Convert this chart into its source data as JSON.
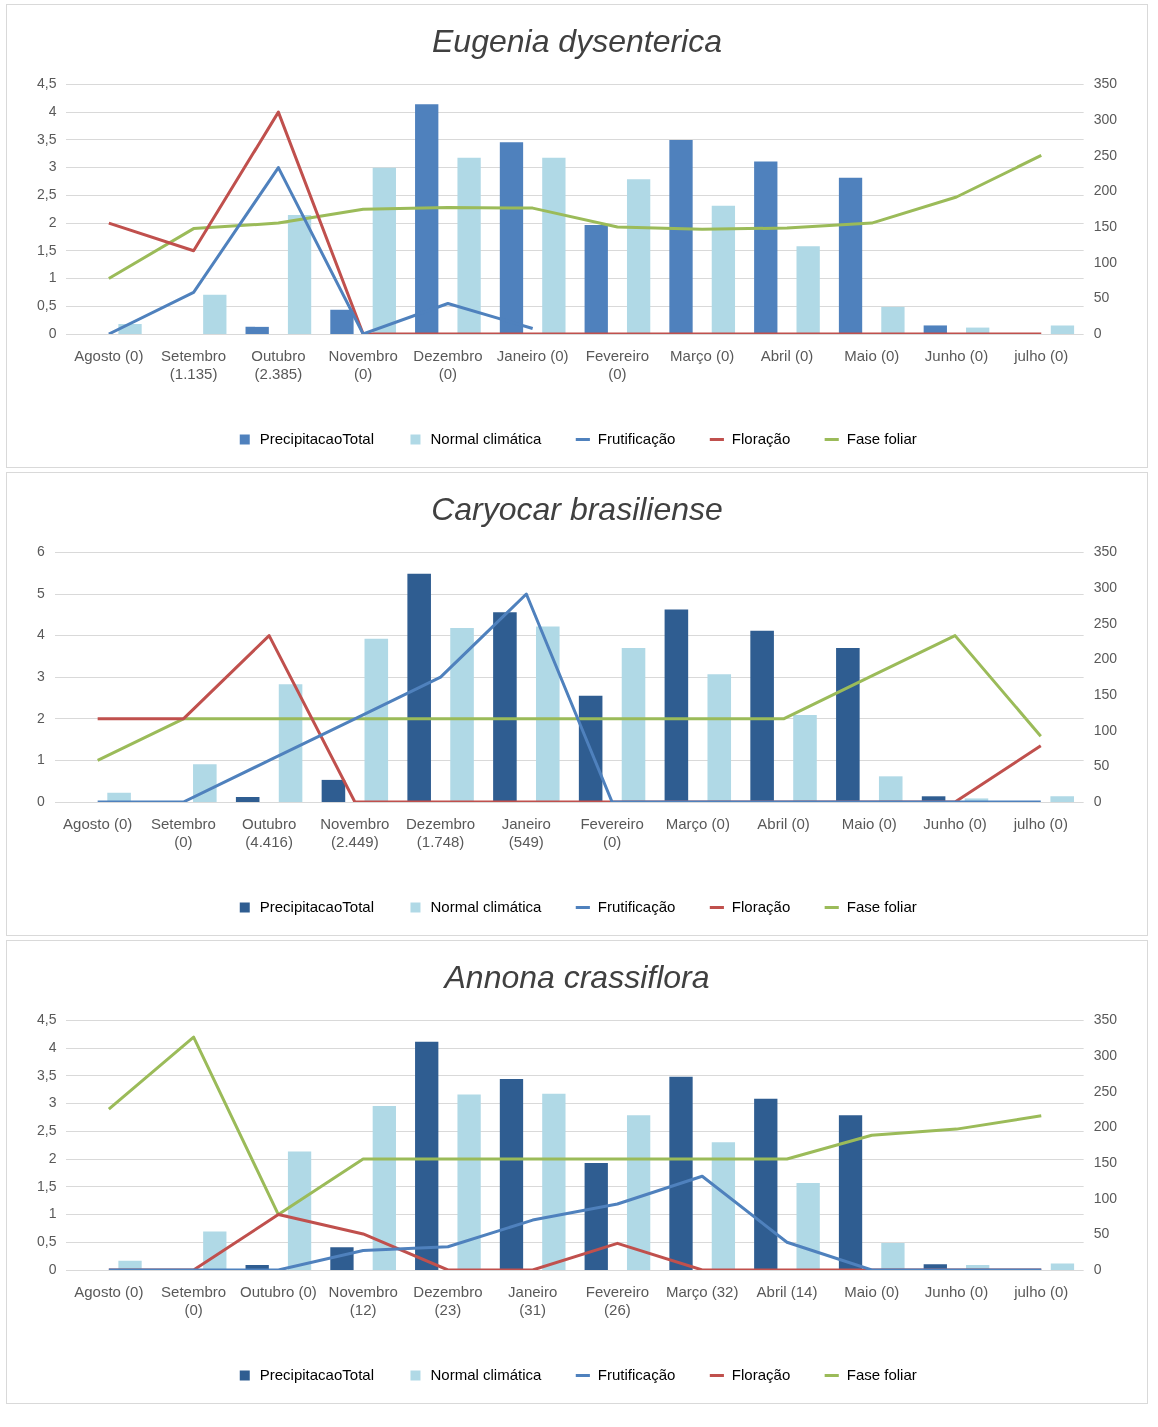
{
  "chart_data": [
    {
      "type": "bar",
      "title": "Eugenia dysenterica",
      "categories": [
        "Agosto (0)",
        "Setembro (1.135)",
        "Outubro (2.385)",
        "Novembro (0)",
        "Dezembro (0)",
        "Janeiro (0)",
        "Fevereiro (0)",
        "Março (0)",
        "Abril (0)",
        "Maio (0)",
        "Junho (0)",
        "julho (0)"
      ],
      "series": [
        {
          "name": "PrecipitacaoTotal",
          "type": "bar",
          "axis": "y2",
          "color": "#4f81bd",
          "values": [
            0,
            0,
            10,
            34,
            322,
            269,
            153,
            272,
            242,
            219,
            12,
            0
          ]
        },
        {
          "name": "Normal climática",
          "type": "bar",
          "axis": "y2",
          "color": "#b0d9e6",
          "values": [
            14,
            55,
            167,
            233,
            247,
            247,
            217,
            180,
            123,
            38,
            9,
            12
          ]
        },
        {
          "name": "Frutificação",
          "type": "line",
          "color": "#4f81bd",
          "values": [
            0,
            0.75,
            3,
            0,
            0.55,
            0.1,
            null,
            null,
            null,
            null,
            null,
            null
          ]
        },
        {
          "name": "Floração",
          "type": "line",
          "color": "#c0504d",
          "values": [
            2,
            1.5,
            4,
            0,
            0,
            0,
            0,
            0,
            0,
            0,
            0,
            0
          ]
        },
        {
          "name": "Fase foliar",
          "type": "line",
          "color": "#9bbb59",
          "values": [
            1,
            1.9,
            2,
            2.25,
            2.28,
            2.27,
            1.93,
            1.89,
            1.91,
            2,
            2.47,
            3.22
          ]
        }
      ],
      "ylim": [
        0,
        4.5
      ],
      "yticks": [
        0,
        {
          "value": 0.5,
          "label": "0,5"
        },
        1,
        {
          "value": 1.5,
          "label": "1,5"
        },
        2,
        {
          "value": 2.5,
          "label": "2,5"
        },
        3,
        {
          "value": 3.5,
          "label": "3,5"
        },
        4,
        {
          "value": 4.5,
          "label": "4,5"
        }
      ],
      "y2lim": [
        0,
        350
      ],
      "y2ticks": [
        0,
        50,
        100,
        150,
        200,
        250,
        300,
        350
      ],
      "grid": "y",
      "legend": "bottom",
      "marker": "none"
    },
    {
      "type": "bar",
      "title": "Caryocar brasiliense",
      "categories": [
        "Agosto (0)",
        "Setembro (0)",
        "Outubro (4.416)",
        "Novembro (2.449)",
        "Dezembro (1.748)",
        "Janeiro (549)",
        "Fevereiro (0)",
        "Março (0)",
        "Abril (0)",
        "Maio (0)",
        "Junho (0)",
        "julho (0)"
      ],
      "series": [
        {
          "name": "PrecipitacaoTotal",
          "type": "bar",
          "axis": "y2",
          "color": "#2f5d91",
          "values": [
            0,
            0,
            7,
            31,
            320,
            266,
            149,
            270,
            240,
            216,
            8,
            0
          ]
        },
        {
          "name": "Normal climática",
          "type": "bar",
          "axis": "y2",
          "color": "#b0d9e6",
          "values": [
            13,
            53,
            165,
            229,
            244,
            246,
            216,
            179,
            122,
            36,
            5,
            8
          ]
        },
        {
          "name": "Frutificação",
          "type": "line",
          "color": "#4f81bd",
          "values": [
            0,
            0,
            1,
            2,
            3,
            5,
            0,
            0,
            0,
            0,
            0,
            0
          ]
        },
        {
          "name": "Floração",
          "type": "line",
          "color": "#c0504d",
          "values": [
            2,
            2,
            4,
            0,
            0,
            0,
            0,
            0,
            0,
            0,
            0,
            1.35
          ]
        },
        {
          "name": "Fase foliar",
          "type": "line",
          "color": "#9bbb59",
          "values": [
            1,
            2,
            2,
            2,
            2,
            2,
            2,
            2,
            2,
            3,
            4,
            1.58
          ]
        }
      ],
      "ylim": [
        0,
        6
      ],
      "yticks": [
        0,
        1,
        2,
        3,
        4,
        5,
        6
      ],
      "y2lim": [
        0,
        350
      ],
      "y2ticks": [
        0,
        50,
        100,
        150,
        200,
        250,
        300,
        350
      ],
      "grid": "y",
      "legend": "bottom",
      "marker": "none"
    },
    {
      "type": "bar",
      "title": "Annona crassiflora",
      "categories": [
        "Agosto (0)",
        "Setembro (0)",
        "Outubro (0)",
        "Novembro (12)",
        "Dezembro (23)",
        "Janeiro (31)",
        "Fevereiro (26)",
        "Março (32)",
        "Abril (14)",
        "Maio (0)",
        "Junho (0)",
        "julho (0)"
      ],
      "series": [
        {
          "name": "PrecipitacaoTotal",
          "type": "bar",
          "axis": "y2",
          "color": "#2f5d91",
          "values": [
            0,
            0,
            7,
            32,
            320,
            268,
            150,
            271,
            240,
            217,
            8,
            0
          ]
        },
        {
          "name": "Normal climática",
          "type": "bar",
          "axis": "y2",
          "color": "#b0d9e6",
          "values": [
            13,
            54,
            166,
            230,
            246,
            247,
            217,
            179,
            122,
            38,
            7,
            9
          ]
        },
        {
          "name": "Frutificação",
          "type": "line",
          "color": "#4f81bd",
          "values": [
            0,
            0,
            0,
            0.35,
            0.42,
            0.9,
            1.19,
            1.69,
            0.5,
            0,
            0,
            0
          ]
        },
        {
          "name": "Floração",
          "type": "line",
          "color": "#c0504d",
          "values": [
            0,
            0,
            1,
            0.65,
            0,
            0,
            0.48,
            0,
            0,
            0,
            0,
            0
          ]
        },
        {
          "name": "Fase foliar",
          "type": "line",
          "color": "#9bbb59",
          "values": [
            2.9,
            4.2,
            1,
            2,
            2,
            2,
            2,
            2,
            2,
            2.43,
            2.54,
            2.78
          ]
        }
      ],
      "ylim": [
        0,
        4.5
      ],
      "yticks": [
        0,
        {
          "value": 0.5,
          "label": "0,5"
        },
        1,
        {
          "value": 1.5,
          "label": "1,5"
        },
        2,
        {
          "value": 2.5,
          "label": "2,5"
        },
        3,
        {
          "value": 3.5,
          "label": "3,5"
        },
        4,
        {
          "value": 4.5,
          "label": "4,5"
        }
      ],
      "y2lim": [
        0,
        350
      ],
      "y2ticks": [
        0,
        50,
        100,
        150,
        200,
        250,
        300,
        350
      ],
      "grid": "y",
      "legend": "bottom",
      "marker": "none"
    }
  ]
}
